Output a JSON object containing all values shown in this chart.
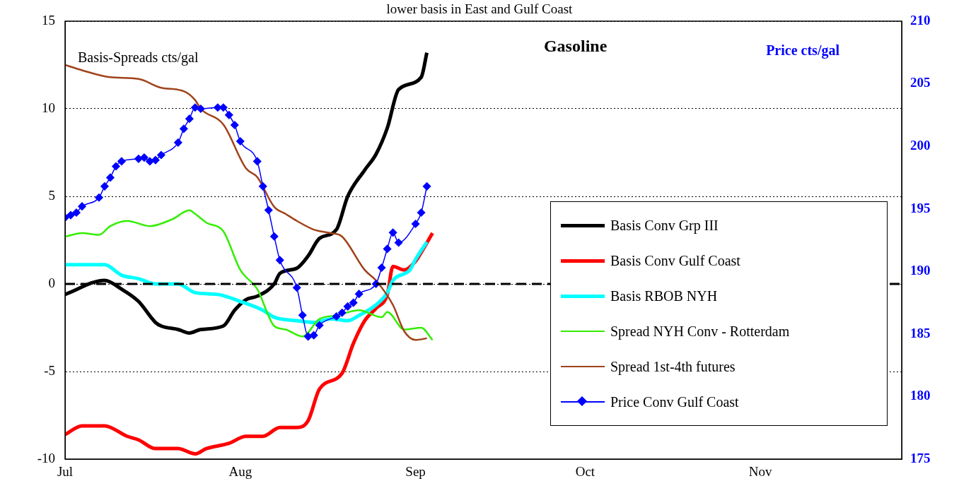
{
  "chart_data": {
    "type": "line",
    "title": "Gasoline",
    "subtitle": "lower basis in East and Gulf Coast",
    "ylabel": "Basis-Spreads cts/gal",
    "y2label": "Price cts/gal",
    "xlim": [
      "--07-01",
      "--11-26"
    ],
    "xticks": [
      {
        "value": "--07-01",
        "label": "Jul"
      },
      {
        "value": "--08-01",
        "label": "Aug"
      },
      {
        "value": "--09-01",
        "label": "Sep"
      },
      {
        "value": "--10-01",
        "label": "Oct"
      },
      {
        "value": "--11-01",
        "label": "Nov"
      }
    ],
    "ylim": [
      -10,
      15
    ],
    "yticks": [
      -10,
      -5,
      0,
      5,
      10,
      15
    ],
    "y2lim": [
      175,
      210
    ],
    "y2ticks": [
      175,
      180,
      185,
      190,
      195,
      200,
      205,
      210
    ],
    "grid": "y",
    "legend": "right",
    "ref_lines": [
      {
        "axis": "y",
        "value": 0,
        "color": "#000000",
        "line_style": "dashed"
      }
    ],
    "series": [
      {
        "name": "Basis Conv Grp III",
        "color": "#000000",
        "x": [
          "--07-01",
          "--07-08",
          "--07-11",
          "--07-14",
          "--07-17",
          "--07-18",
          "--07-21",
          "--07-23",
          "--07-25",
          "--07-29",
          "--07-31",
          "--08-02",
          "--08-04",
          "--08-07",
          "--08-08",
          "--08-11",
          "--08-13",
          "--08-15",
          "--08-18",
          "--08-20",
          "--08-23",
          "--08-25",
          "--08-27",
          "--08-29",
          "--09-02",
          "--09-03"
        ],
        "values": [
          -0.6,
          0.2,
          -0.3,
          -1.0,
          -2.2,
          -2.4,
          -2.6,
          -2.8,
          -2.6,
          -2.4,
          -1.5,
          -0.9,
          -0.7,
          0.0,
          0.6,
          0.9,
          1.6,
          2.6,
          3.1,
          5.0,
          6.5,
          7.4,
          8.9,
          11.1,
          11.8,
          13.2
        ]
      },
      {
        "name": "Basis Conv Gulf Coast",
        "color": "#ff0000",
        "x": [
          "--07-01",
          "--07-04",
          "--07-08",
          "--07-12",
          "--07-14",
          "--07-17",
          "--07-21",
          "--07-24",
          "--07-26",
          "--07-30",
          "--08-02",
          "--08-05",
          "--08-08",
          "--08-11",
          "--08-13",
          "--08-15",
          "--08-19",
          "--08-21",
          "--08-23",
          "--08-25",
          "--08-27",
          "--08-28",
          "--08-30",
          "--09-01",
          "--09-02",
          "--09-04"
        ],
        "values": [
          -8.6,
          -8.1,
          -8.1,
          -8.7,
          -8.9,
          -9.4,
          -9.4,
          -9.7,
          -9.4,
          -9.1,
          -8.7,
          -8.7,
          -8.2,
          -8.2,
          -7.8,
          -6.0,
          -5.1,
          -3.4,
          -2.1,
          -1.4,
          -0.6,
          1.0,
          0.8,
          1.3,
          1.8,
          2.9
        ]
      },
      {
        "name": "Basis RBOB NYH",
        "color": "#00ffff",
        "x": [
          "--07-01",
          "--07-08",
          "--07-11",
          "--07-14",
          "--07-17",
          "--07-21",
          "--07-24",
          "--07-28",
          "--08-01",
          "--08-05",
          "--08-07",
          "--08-11",
          "--08-14",
          "--08-17",
          "--08-20",
          "--08-22",
          "--08-25",
          "--08-27",
          "--08-28",
          "--08-31",
          "--09-01",
          "--09-03"
        ],
        "values": [
          1.1,
          1.1,
          0.5,
          0.3,
          0.0,
          0.0,
          -0.5,
          -0.6,
          -1.0,
          -1.5,
          -1.9,
          -2.1,
          -2.2,
          -2.0,
          -2.1,
          -1.8,
          -1.2,
          -0.5,
          0.2,
          0.8,
          1.4,
          2.4
        ]
      },
      {
        "name": "Spread NYH Conv - Rotterdam",
        "color": "#33ee00",
        "x": [
          "--07-01",
          "--07-04",
          "--07-07",
          "--07-09",
          "--07-12",
          "--07-16",
          "--07-20",
          "--07-23",
          "--07-24",
          "--07-26",
          "--07-29",
          "--08-01",
          "--08-04",
          "--08-07",
          "--08-09",
          "--08-12",
          "--08-15",
          "--08-18",
          "--08-22",
          "--08-26",
          "--08-27",
          "--08-30",
          "--09-02",
          "--09-04"
        ],
        "values": [
          2.7,
          2.9,
          2.8,
          3.3,
          3.6,
          3.3,
          3.7,
          4.2,
          4.0,
          3.5,
          3.0,
          0.8,
          -0.3,
          -2.4,
          -2.6,
          -3.0,
          -2.0,
          -1.8,
          -1.5,
          -1.9,
          -1.6,
          -2.6,
          -2.5,
          -3.2
        ]
      },
      {
        "name": "Spread 1st-4th futures",
        "color": "#a0421a",
        "x": [
          "--07-01",
          "--07-04",
          "--07-09",
          "--07-14",
          "--07-18",
          "--07-22",
          "--07-24",
          "--07-25",
          "--07-29",
          "--08-02",
          "--08-04",
          "--08-07",
          "--08-09",
          "--08-11",
          "--08-14",
          "--08-17",
          "--08-19",
          "--08-23",
          "--08-25",
          "--08-28",
          "--08-30",
          "--09-01",
          "--09-03"
        ],
        "values": [
          12.5,
          12.2,
          11.8,
          11.7,
          11.2,
          11.0,
          10.5,
          10.0,
          9.1,
          6.6,
          6.1,
          4.4,
          4.0,
          3.6,
          3.1,
          2.9,
          2.7,
          0.8,
          0.2,
          -1.2,
          -2.7,
          -3.2,
          -3.1
        ]
      },
      {
        "name": "Price Conv Gulf Coast",
        "color": "#0000ff",
        "axis": "y2",
        "marker": "diamond",
        "x": [
          "--07-01",
          "--07-02",
          "--07-03",
          "--07-04",
          "--07-07",
          "--07-08",
          "--07-09",
          "--07-10",
          "--07-11",
          "--07-14",
          "--07-15",
          "--07-16",
          "--07-17",
          "--07-18",
          "--07-21",
          "--07-22",
          "--07-23",
          "--07-24",
          "--07-25",
          "--07-28",
          "--07-29",
          "--07-30",
          "--07-31",
          "--08-01",
          "--08-04",
          "--08-05",
          "--08-06",
          "--08-07",
          "--08-08",
          "--08-11",
          "--08-12",
          "--08-13",
          "--08-14",
          "--08-15",
          "--08-18",
          "--08-19",
          "--08-20",
          "--08-21",
          "--08-22",
          "--08-25",
          "--08-26",
          "--08-27",
          "--08-28",
          "--08-29",
          "--09-01",
          "--09-02",
          "--09-03"
        ],
        "values": [
          194.3,
          194.5,
          194.7,
          195.2,
          195.9,
          196.8,
          197.5,
          198.4,
          198.8,
          199.0,
          199.1,
          198.8,
          198.9,
          199.3,
          200.3,
          201.4,
          202.2,
          203.1,
          203.0,
          203.1,
          203.1,
          202.5,
          201.7,
          200.4,
          198.8,
          196.8,
          194.9,
          192.8,
          190.9,
          188.7,
          186.5,
          184.8,
          184.9,
          185.7,
          186.4,
          186.7,
          187.2,
          187.5,
          188.2,
          189.0,
          190.3,
          191.8,
          193.1,
          192.3,
          193.8,
          194.7,
          196.8
        ]
      }
    ]
  }
}
